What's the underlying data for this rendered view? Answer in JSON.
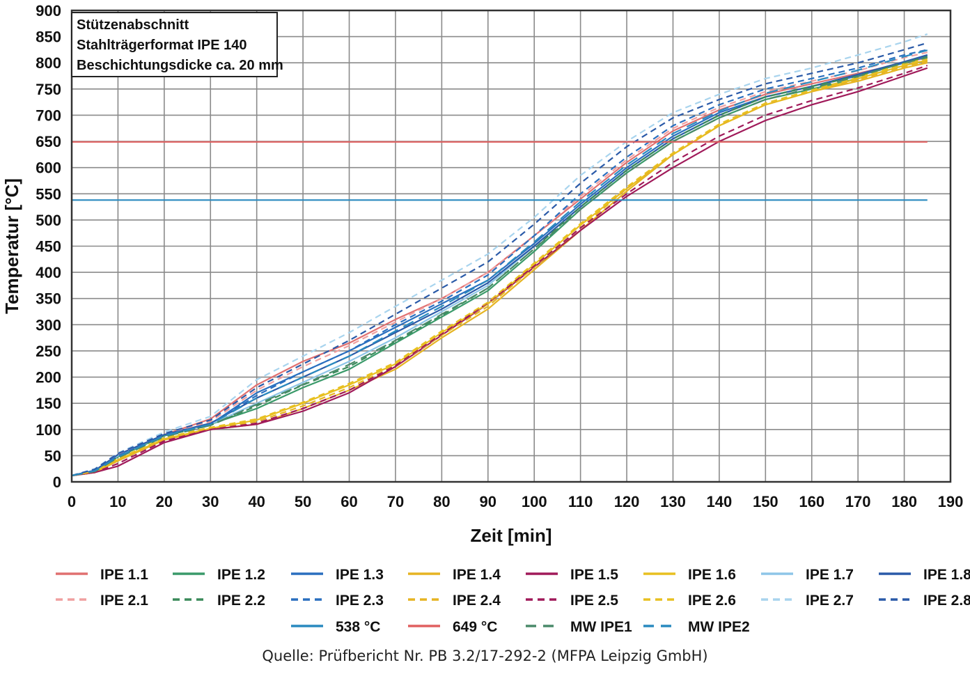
{
  "chart_data": {
    "type": "line",
    "title": "",
    "xlabel": "Zeit [min]",
    "ylabel": "Temperatur [°C]",
    "xlim": [
      0,
      190
    ],
    "ylim": [
      0,
      900
    ],
    "xticks": [
      0,
      10,
      20,
      30,
      40,
      50,
      60,
      70,
      80,
      90,
      100,
      110,
      120,
      130,
      140,
      150,
      160,
      170,
      180,
      190
    ],
    "yticks": [
      0,
      50,
      100,
      150,
      200,
      250,
      300,
      350,
      400,
      450,
      500,
      550,
      600,
      650,
      700,
      750,
      800,
      850,
      900
    ],
    "grid": true,
    "legend_position": "bottom",
    "annotation_lines": [
      "Stützenabschnitt",
      "Stahlträgerformat IPE 140",
      "Beschichtungsdicke ca. 20 mm"
    ],
    "series": [
      {
        "name": "IPE 1.1",
        "color": "#e07070",
        "dash": "solid",
        "x": [
          0,
          5,
          10,
          20,
          30,
          40,
          50,
          60,
          70,
          80,
          90,
          100,
          110,
          120,
          130,
          140,
          150,
          160,
          170,
          180,
          185
        ],
        "y": [
          12,
          20,
          50,
          90,
          120,
          185,
          230,
          265,
          310,
          350,
          400,
          470,
          540,
          610,
          670,
          710,
          740,
          760,
          780,
          800,
          810
        ]
      },
      {
        "name": "IPE 1.2",
        "color": "#3a9a6a",
        "dash": "solid",
        "x": [
          0,
          5,
          10,
          20,
          30,
          40,
          50,
          60,
          70,
          80,
          90,
          100,
          110,
          120,
          130,
          140,
          150,
          160,
          170,
          180,
          185
        ],
        "y": [
          12,
          20,
          48,
          88,
          110,
          140,
          180,
          215,
          265,
          315,
          365,
          440,
          520,
          590,
          650,
          695,
          730,
          750,
          770,
          795,
          805
        ]
      },
      {
        "name": "IPE 1.3",
        "color": "#2a6fbf",
        "dash": "solid",
        "x": [
          0,
          5,
          10,
          20,
          30,
          40,
          50,
          60,
          70,
          80,
          90,
          100,
          110,
          120,
          130,
          140,
          150,
          160,
          170,
          180,
          185
        ],
        "y": [
          12,
          22,
          50,
          90,
          110,
          170,
          210,
          250,
          295,
          340,
          385,
          455,
          530,
          600,
          660,
          705,
          735,
          755,
          775,
          800,
          812
        ]
      },
      {
        "name": "IPE 1.4",
        "color": "#e6b422",
        "dash": "solid",
        "x": [
          0,
          5,
          10,
          20,
          30,
          40,
          50,
          60,
          70,
          80,
          90,
          100,
          110,
          120,
          130,
          140,
          150,
          160,
          170,
          180,
          185
        ],
        "y": [
          12,
          18,
          40,
          80,
          100,
          110,
          140,
          175,
          215,
          275,
          330,
          405,
          480,
          555,
          625,
          680,
          720,
          745,
          765,
          790,
          800
        ]
      },
      {
        "name": "IPE 1.5",
        "color": "#a01a5a",
        "dash": "solid",
        "x": [
          0,
          5,
          10,
          20,
          30,
          40,
          50,
          60,
          70,
          80,
          90,
          100,
          110,
          120,
          130,
          140,
          150,
          160,
          170,
          180,
          185
        ],
        "y": [
          12,
          18,
          30,
          75,
          100,
          110,
          135,
          170,
          220,
          280,
          340,
          410,
          480,
          545,
          600,
          650,
          690,
          720,
          745,
          775,
          790
        ]
      },
      {
        "name": "IPE 1.6",
        "color": "#e8c020",
        "dash": "solid",
        "x": [
          0,
          5,
          10,
          20,
          30,
          40,
          50,
          60,
          70,
          80,
          90,
          100,
          110,
          120,
          130,
          140,
          150,
          160,
          170,
          180,
          185
        ],
        "y": [
          12,
          20,
          42,
          82,
          102,
          118,
          150,
          185,
          225,
          285,
          340,
          415,
          490,
          560,
          625,
          680,
          720,
          745,
          770,
          795,
          805
        ]
      },
      {
        "name": "IPE 1.7",
        "color": "#8ec5e8",
        "dash": "solid",
        "x": [
          0,
          5,
          10,
          20,
          30,
          40,
          50,
          60,
          70,
          80,
          90,
          100,
          110,
          120,
          130,
          140,
          150,
          160,
          170,
          180,
          185
        ],
        "y": [
          12,
          22,
          50,
          90,
          110,
          150,
          190,
          230,
          275,
          325,
          375,
          450,
          525,
          595,
          655,
          700,
          735,
          755,
          778,
          802,
          815
        ]
      },
      {
        "name": "IPE 1.8",
        "color": "#2a5aa8",
        "dash": "solid",
        "x": [
          0,
          5,
          10,
          20,
          30,
          40,
          50,
          60,
          70,
          80,
          90,
          100,
          110,
          120,
          130,
          140,
          150,
          160,
          170,
          180,
          185
        ],
        "y": [
          12,
          22,
          52,
          90,
          112,
          160,
          200,
          240,
          285,
          330,
          380,
          450,
          525,
          595,
          655,
          700,
          735,
          755,
          778,
          802,
          815
        ]
      },
      {
        "name": "IPE 2.1",
        "color": "#f0a0a0",
        "dash": "dashed",
        "x": [
          0,
          5,
          10,
          20,
          30,
          40,
          50,
          60,
          70,
          80,
          90,
          100,
          110,
          120,
          130,
          140,
          150,
          160,
          170,
          180,
          185
        ],
        "y": [
          12,
          22,
          52,
          92,
          115,
          175,
          220,
          260,
          305,
          350,
          400,
          470,
          545,
          615,
          675,
          715,
          745,
          765,
          785,
          810,
          820
        ]
      },
      {
        "name": "IPE 2.2",
        "color": "#3a8a5a",
        "dash": "dashed",
        "x": [
          0,
          5,
          10,
          20,
          30,
          40,
          50,
          60,
          70,
          80,
          90,
          100,
          110,
          120,
          130,
          140,
          150,
          160,
          170,
          180,
          185
        ],
        "y": [
          12,
          20,
          48,
          88,
          108,
          145,
          185,
          220,
          268,
          318,
          370,
          445,
          525,
          595,
          655,
          700,
          735,
          755,
          775,
          800,
          812
        ]
      },
      {
        "name": "IPE 2.3",
        "color": "#2a6fbf",
        "dash": "dashed",
        "x": [
          0,
          5,
          10,
          20,
          30,
          40,
          50,
          60,
          70,
          80,
          90,
          100,
          110,
          120,
          130,
          140,
          150,
          160,
          170,
          180,
          185
        ],
        "y": [
          12,
          22,
          50,
          90,
          110,
          165,
          210,
          250,
          300,
          345,
          395,
          470,
          550,
          620,
          680,
          720,
          750,
          770,
          790,
          815,
          825
        ]
      },
      {
        "name": "IPE 2.4",
        "color": "#e6b422",
        "dash": "dashed",
        "x": [
          0,
          5,
          10,
          20,
          30,
          40,
          50,
          60,
          70,
          80,
          90,
          100,
          110,
          120,
          130,
          140,
          150,
          160,
          170,
          180,
          185
        ],
        "y": [
          12,
          18,
          42,
          82,
          102,
          115,
          145,
          180,
          222,
          280,
          335,
          410,
          485,
          560,
          625,
          680,
          720,
          745,
          768,
          793,
          803
        ]
      },
      {
        "name": "IPE 2.5",
        "color": "#a01a5a",
        "dash": "dashed",
        "x": [
          0,
          5,
          10,
          20,
          30,
          40,
          50,
          60,
          70,
          80,
          90,
          100,
          110,
          120,
          130,
          140,
          150,
          160,
          170,
          180,
          185
        ],
        "y": [
          12,
          18,
          35,
          78,
          100,
          112,
          140,
          175,
          222,
          282,
          342,
          412,
          485,
          550,
          610,
          660,
          700,
          728,
          752,
          780,
          795
        ]
      },
      {
        "name": "IPE 2.6",
        "color": "#e8c020",
        "dash": "dashed",
        "x": [
          0,
          5,
          10,
          20,
          30,
          40,
          50,
          60,
          70,
          80,
          90,
          100,
          110,
          120,
          130,
          140,
          150,
          160,
          170,
          180,
          185
        ],
        "y": [
          12,
          20,
          44,
          84,
          104,
          120,
          152,
          188,
          228,
          288,
          343,
          418,
          493,
          563,
          628,
          683,
          723,
          748,
          772,
          798,
          808
        ]
      },
      {
        "name": "IPE 2.7",
        "color": "#a8d4ee",
        "dash": "dashed",
        "x": [
          0,
          5,
          10,
          20,
          30,
          40,
          50,
          60,
          70,
          80,
          90,
          100,
          110,
          120,
          130,
          140,
          150,
          160,
          170,
          180,
          185
        ],
        "y": [
          12,
          25,
          55,
          95,
          125,
          195,
          240,
          285,
          335,
          385,
          435,
          505,
          585,
          650,
          705,
          740,
          770,
          790,
          815,
          840,
          855
        ]
      },
      {
        "name": "IPE 2.8",
        "color": "#2a5aa8",
        "dash": "dashed",
        "x": [
          0,
          5,
          10,
          20,
          30,
          40,
          50,
          60,
          70,
          80,
          90,
          100,
          110,
          120,
          130,
          140,
          150,
          160,
          170,
          180,
          185
        ],
        "y": [
          12,
          24,
          54,
          92,
          118,
          180,
          225,
          270,
          320,
          370,
          420,
          492,
          570,
          640,
          695,
          730,
          760,
          780,
          800,
          825,
          838
        ]
      },
      {
        "name": "538 °C",
        "color": "#2a8abf",
        "dash": "solid",
        "x": [
          0,
          185
        ],
        "y": [
          538,
          538
        ]
      },
      {
        "name": "649 °C",
        "color": "#e06060",
        "dash": "solid",
        "x": [
          0,
          185
        ],
        "y": [
          649,
          649
        ]
      },
      {
        "name": "MW IPE1",
        "color": "#4a8a6a",
        "dash": "longdash",
        "x": [
          0,
          5,
          10,
          20,
          30,
          40,
          50,
          60,
          70,
          80,
          90,
          100,
          110,
          120,
          130,
          140,
          150,
          160,
          170,
          180,
          185
        ],
        "y": [
          12,
          20,
          46,
          86,
          108,
          148,
          186,
          224,
          270,
          320,
          370,
          445,
          520,
          590,
          650,
          695,
          730,
          752,
          774,
          800,
          810
        ]
      },
      {
        "name": "MW IPE2",
        "color": "#2a8abf",
        "dash": "longdash",
        "x": [
          0,
          5,
          10,
          20,
          30,
          40,
          50,
          60,
          70,
          80,
          90,
          100,
          110,
          120,
          130,
          140,
          150,
          160,
          170,
          180,
          185
        ],
        "y": [
          12,
          21,
          48,
          88,
          110,
          160,
          200,
          240,
          288,
          335,
          385,
          458,
          535,
          605,
          665,
          708,
          742,
          764,
          786,
          812,
          824
        ]
      }
    ]
  },
  "legend": {
    "items": [
      {
        "label": "IPE 1.1",
        "color": "#e07070",
        "dash": "solid"
      },
      {
        "label": "IPE 1.2",
        "color": "#3a9a6a",
        "dash": "solid"
      },
      {
        "label": "IPE 1.3",
        "color": "#2a6fbf",
        "dash": "solid"
      },
      {
        "label": "IPE 1.4",
        "color": "#e6b422",
        "dash": "solid"
      },
      {
        "label": "IPE 1.5",
        "color": "#a01a5a",
        "dash": "solid"
      },
      {
        "label": "IPE 1.6",
        "color": "#e8c020",
        "dash": "solid"
      },
      {
        "label": "IPE 1.7",
        "color": "#8ec5e8",
        "dash": "solid"
      },
      {
        "label": "IPE 1.8",
        "color": "#2a5aa8",
        "dash": "solid"
      },
      {
        "label": "IPE 2.1",
        "color": "#f0a0a0",
        "dash": "dashed"
      },
      {
        "label": "IPE 2.2",
        "color": "#3a8a5a",
        "dash": "dashed"
      },
      {
        "label": "IPE 2.3",
        "color": "#2a6fbf",
        "dash": "dashed"
      },
      {
        "label": "IPE 2.4",
        "color": "#e6b422",
        "dash": "dashed"
      },
      {
        "label": "IPE 2.5",
        "color": "#a01a5a",
        "dash": "dashed"
      },
      {
        "label": "IPE 2.6",
        "color": "#e8c020",
        "dash": "dashed"
      },
      {
        "label": "IPE 2.7",
        "color": "#a8d4ee",
        "dash": "dashed"
      },
      {
        "label": "IPE 2.8",
        "color": "#2a5aa8",
        "dash": "dashed"
      },
      {
        "label": "538 °C",
        "color": "#2a8abf",
        "dash": "solid"
      },
      {
        "label": "649 °C",
        "color": "#e06060",
        "dash": "solid"
      },
      {
        "label": "MW IPE1",
        "color": "#4a8a6a",
        "dash": "longdash"
      },
      {
        "label": "MW IPE2",
        "color": "#2a8abf",
        "dash": "longdash"
      }
    ]
  },
  "source": "Quelle: Prüfbericht Nr. PB 3.2/17-292-2 (MFPA Leipzig GmbH)"
}
